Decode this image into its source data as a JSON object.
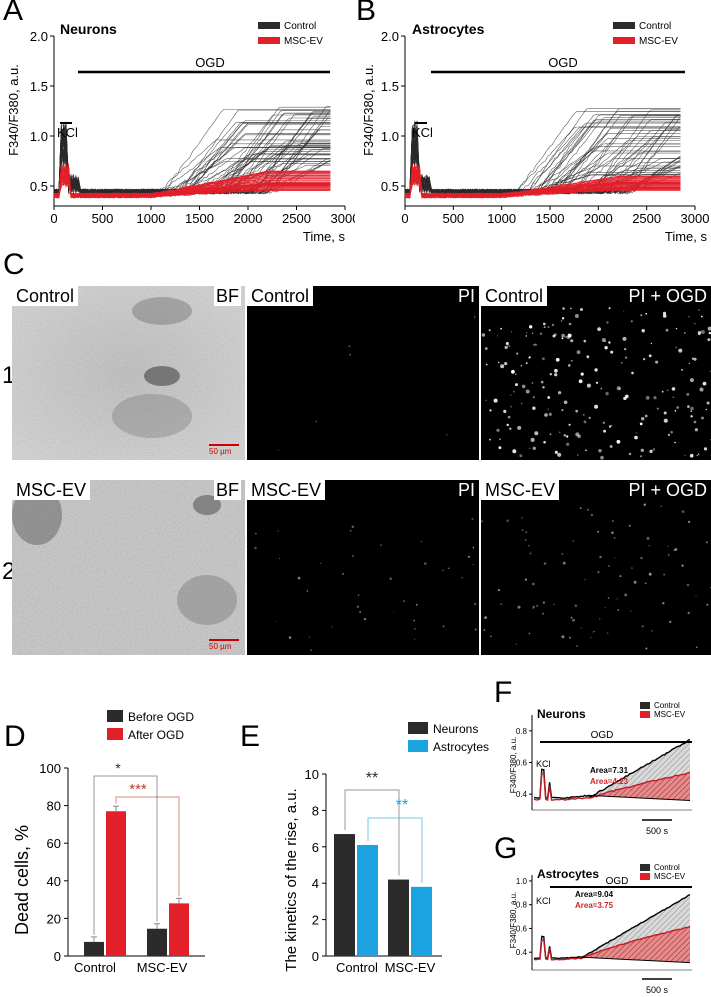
{
  "panels": {
    "A": {
      "letter": "A",
      "title": "Neurons"
    },
    "B": {
      "letter": "B",
      "title": "Astrocytes"
    },
    "C": {
      "letter": "C"
    },
    "D": {
      "letter": "D"
    },
    "E": {
      "letter": "E"
    },
    "F": {
      "letter": "F",
      "title": "Neurons"
    },
    "G": {
      "letter": "G",
      "title": "Astrocytes"
    }
  },
  "legend": {
    "control": "Control",
    "msc": "MSC-EV"
  },
  "colors": {
    "control": "#2b2b2b",
    "msc": "#e3202a",
    "astro_blue": "#1aa3e0",
    "bracket_red": "#c0392b",
    "star_blue": "#1aa3e0"
  },
  "trace_labels": {
    "ylabel": "F340/F380, a.u.",
    "xlabel": "Time, s",
    "kcl": "KCl",
    "ogd": "OGD"
  },
  "micro": {
    "row1": {
      "num": "1",
      "bf_label": "Control",
      "bf_tag": "BF",
      "pi_label": "Control",
      "pi_tag": "PI",
      "ogd_label": "Control",
      "ogd_tag": "PI + OGD"
    },
    "row2": {
      "num": "2",
      "bf_label": "MSC-EV",
      "bf_tag": "BF",
      "pi_label": "MSC-EV",
      "pi_tag": "PI",
      "ogd_label": "MSC-EV",
      "ogd_tag": "PI + OGD"
    },
    "scale": "50 µm"
  },
  "chart_data": [
    {
      "id": "A",
      "type": "line",
      "title": "Neurons",
      "xlabel": "Time, s",
      "ylabel": "F340/F380, a.u.",
      "xlim": [
        0,
        3000
      ],
      "ylim": [
        0.3,
        2.0
      ],
      "xticks": [
        0,
        500,
        1000,
        1500,
        2000,
        2500,
        3000
      ],
      "yticks": [
        0.5,
        1.0,
        1.5,
        2.0
      ],
      "annotations": [
        "KCl",
        "OGD"
      ],
      "series": [
        {
          "name": "Control",
          "final_range": [
            0.7,
            1.3
          ]
        },
        {
          "name": "MSC-EV",
          "final_range": [
            0.45,
            0.65
          ]
        }
      ]
    },
    {
      "id": "B",
      "type": "line",
      "title": "Astrocytes",
      "xlabel": "Time, s",
      "ylabel": "F340/F380, a.u.",
      "xlim": [
        0,
        3000
      ],
      "ylim": [
        0.3,
        2.0
      ],
      "xticks": [
        0,
        500,
        1000,
        1500,
        2000,
        2500,
        3000
      ],
      "yticks": [
        0.5,
        1.0,
        1.5,
        2.0
      ],
      "annotations": [
        "KCl",
        "OGD"
      ],
      "series": [
        {
          "name": "Control",
          "final_range": [
            0.6,
            1.3
          ]
        },
        {
          "name": "MSC-EV",
          "final_range": [
            0.45,
            0.6
          ]
        }
      ]
    },
    {
      "id": "D",
      "type": "bar",
      "ylabel": "Dead cells, %",
      "ylim": [
        0,
        100
      ],
      "yticks": [
        0,
        20,
        40,
        60,
        80,
        100
      ],
      "categories": [
        "Control",
        "MSC-EV"
      ],
      "series": [
        {
          "name": "Before OGD",
          "values": [
            7.5,
            14.5
          ]
        },
        {
          "name": "After OGD",
          "values": [
            77,
            28
          ]
        }
      ],
      "significance": [
        {
          "label": "*",
          "color": "#2b2b2b"
        },
        {
          "label": "***",
          "color": "#c0392b"
        }
      ]
    },
    {
      "id": "E",
      "type": "bar",
      "ylabel": "The kinetics of the rise, a.u.",
      "ylim": [
        0,
        10
      ],
      "yticks": [
        0,
        2,
        4,
        6,
        8,
        10
      ],
      "categories": [
        "Control",
        "MSC-EV"
      ],
      "series": [
        {
          "name": "Neurons",
          "values": [
            6.7,
            4.2
          ]
        },
        {
          "name": "Astrocytes",
          "values": [
            6.1,
            3.8
          ]
        }
      ],
      "significance": [
        {
          "label": "**",
          "color": "#2b2b2b"
        },
        {
          "label": "**",
          "color": "#1aa3e0"
        }
      ]
    },
    {
      "id": "F",
      "type": "area",
      "title": "Neurons",
      "ylabel": "F340/F380, a.u.",
      "yticks": [
        0.4,
        0.6,
        0.8
      ],
      "scale": "500 s",
      "annotations": [
        "KCl",
        "OGD",
        "Area=7.31",
        "Area=4.23"
      ],
      "series": [
        {
          "name": "Control",
          "area": 7.31
        },
        {
          "name": "MSC-EV",
          "area": 4.23
        }
      ]
    },
    {
      "id": "G",
      "type": "area",
      "title": "Astrocytes",
      "ylabel": "F340/F380, a.u.",
      "yticks": [
        0.4,
        0.6,
        0.8,
        1.0
      ],
      "scale": "500 s",
      "annotations": [
        "KCl",
        "OGD",
        "Area=9.04",
        "Area=3.75"
      ],
      "series": [
        {
          "name": "Control",
          "area": 9.04
        },
        {
          "name": "MSC-EV",
          "area": 3.75
        }
      ]
    }
  ],
  "labels": {
    "D": {
      "ylabel": "Dead cells, %",
      "cat1": "Control",
      "cat2": "MSC-EV",
      "leg1": "Before OGD",
      "leg2": "After OGD",
      "sig1": "*",
      "sig2": "***"
    },
    "E": {
      "ylabel": "The kinetics of the rise, a.u.",
      "cat1": "Control",
      "cat2": "MSC-EV",
      "leg1": "Neurons",
      "leg2": "Astrocytes",
      "sig1": "**",
      "sig2": "**"
    },
    "F": {
      "area1": "Area=7.31",
      "area2": "Area=4.23",
      "scale": "500 s"
    },
    "G": {
      "area1": "Area=9.04",
      "area2": "Area=3.75",
      "scale": "500 s"
    }
  }
}
